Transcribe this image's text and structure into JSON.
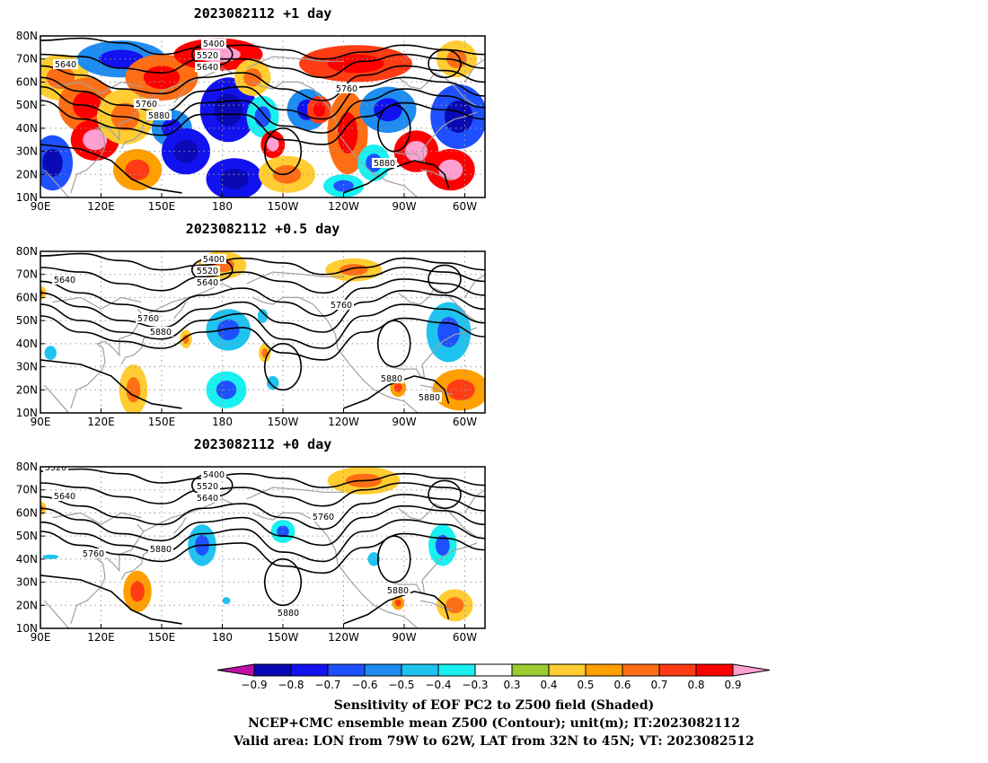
{
  "panels": [
    {
      "title": "2023082112  +1 day",
      "contour_labels": [
        "5400",
        "5520",
        "5640",
        "5640",
        "5760",
        "5760",
        "5880",
        "5880"
      ],
      "blobs": [
        {
          "lon": 100,
          "lat": 62,
          "rx": 14,
          "ry": 10,
          "v": 0.4
        },
        {
          "lon": 113,
          "lat": 50,
          "rx": 14,
          "ry": 12,
          "v": 0.6
        },
        {
          "lon": 117,
          "lat": 35,
          "rx": 12,
          "ry": 9,
          "v": 0.8
        },
        {
          "lon": 96,
          "lat": 25,
          "rx": 10,
          "ry": 12,
          "v": -0.7
        },
        {
          "lon": 130,
          "lat": 70,
          "rx": 22,
          "ry": 8,
          "v": -0.6
        },
        {
          "lon": 132,
          "lat": 45,
          "rx": 14,
          "ry": 12,
          "v": 0.4
        },
        {
          "lon": 138,
          "lat": 22,
          "rx": 12,
          "ry": 9,
          "v": 0.5
        },
        {
          "lon": 150,
          "lat": 62,
          "rx": 18,
          "ry": 10,
          "v": 0.6
        },
        {
          "lon": 155,
          "lat": 40,
          "rx": 10,
          "ry": 8,
          "v": -0.6
        },
        {
          "lon": 162,
          "lat": 30,
          "rx": 12,
          "ry": 10,
          "v": -0.8
        },
        {
          "lon": 178,
          "lat": 72,
          "rx": 22,
          "ry": 7,
          "v": 0.8
        },
        {
          "lon": 183,
          "lat": 48,
          "rx": 14,
          "ry": 14,
          "v": -0.8
        },
        {
          "lon": 195,
          "lat": 62,
          "rx": 9,
          "ry": 8,
          "v": 0.4
        },
        {
          "lon": 186,
          "lat": 18,
          "rx": 14,
          "ry": 9,
          "v": -0.8
        },
        {
          "lon": 200,
          "lat": 45,
          "rx": 8,
          "ry": 9,
          "v": -0.4
        },
        {
          "lon": 205,
          "lat": 33,
          "rx": 6,
          "ry": 6,
          "v": 0.8
        },
        {
          "lon": 212,
          "lat": 20,
          "rx": 14,
          "ry": 8,
          "v": 0.4
        },
        {
          "lon": 222,
          "lat": 48,
          "rx": 10,
          "ry": 9,
          "v": -0.6
        },
        {
          "lon": 228,
          "lat": 48,
          "rx": 6,
          "ry": 6,
          "v": 0.7
        },
        {
          "lon": 246,
          "lat": 68,
          "rx": 28,
          "ry": 8,
          "v": 0.7
        },
        {
          "lon": 242,
          "lat": 38,
          "rx": 10,
          "ry": 18,
          "v": 0.6
        },
        {
          "lon": 262,
          "lat": 48,
          "rx": 14,
          "ry": 10,
          "v": -0.6
        },
        {
          "lon": 276,
          "lat": 30,
          "rx": 11,
          "ry": 9,
          "v": 0.8
        },
        {
          "lon": 296,
          "lat": 70,
          "rx": 10,
          "ry": 8,
          "v": 0.4
        },
        {
          "lon": 297,
          "lat": 45,
          "rx": 14,
          "ry": 14,
          "v": -0.7
        },
        {
          "lon": 293,
          "lat": 22,
          "rx": 12,
          "ry": 9,
          "v": 0.8
        },
        {
          "lon": 240,
          "lat": 15,
          "rx": 10,
          "ry": 5,
          "v": -0.4
        },
        {
          "lon": 255,
          "lat": 25,
          "rx": 8,
          "ry": 8,
          "v": -0.4
        }
      ]
    },
    {
      "title": "2023082112  +0.5 day",
      "contour_labels": [
        "5400",
        "5520",
        "5640",
        "5640",
        "5760",
        "5760",
        "5880",
        "5880",
        "5880"
      ],
      "blobs": [
        {
          "lon": 180,
          "lat": 74,
          "rx": 12,
          "ry": 6,
          "v": 0.4
        },
        {
          "lon": 245,
          "lat": 72,
          "rx": 14,
          "ry": 5,
          "v": 0.4
        },
        {
          "lon": 183,
          "lat": 46,
          "rx": 11,
          "ry": 9,
          "v": -0.5
        },
        {
          "lon": 200,
          "lat": 52,
          "rx": 5,
          "ry": 6,
          "v": -0.3
        },
        {
          "lon": 201,
          "lat": 36,
          "rx": 3,
          "ry": 4,
          "v": 0.4
        },
        {
          "lon": 205,
          "lat": 23,
          "rx": 6,
          "ry": 6,
          "v": -0.3
        },
        {
          "lon": 182,
          "lat": 20,
          "rx": 10,
          "ry": 8,
          "v": -0.4
        },
        {
          "lon": 162,
          "lat": 42,
          "rx": 3,
          "ry": 4,
          "v": 0.4
        },
        {
          "lon": 136,
          "lat": 20,
          "rx": 7,
          "ry": 11,
          "v": 0.4
        },
        {
          "lon": 95,
          "lat": 36,
          "rx": 6,
          "ry": 6,
          "v": -0.3
        },
        {
          "lon": 292,
          "lat": 45,
          "rx": 11,
          "ry": 13,
          "v": -0.5
        },
        {
          "lon": 298,
          "lat": 20,
          "rx": 14,
          "ry": 9,
          "v": 0.5
        },
        {
          "lon": 267,
          "lat": 21,
          "rx": 4,
          "ry": 4,
          "v": 0.5
        },
        {
          "lon": 90,
          "lat": 62,
          "rx": 3,
          "ry": 3,
          "v": 0.4
        }
      ]
    },
    {
      "title": "2023082112  +0 day",
      "contour_labels": [
        "5400",
        "5520",
        "5520",
        "5640",
        "5640",
        "5760",
        "5760",
        "5880",
        "5880",
        "5880"
      ],
      "blobs": [
        {
          "lon": 250,
          "lat": 74,
          "rx": 18,
          "ry": 6,
          "v": 0.4
        },
        {
          "lon": 170,
          "lat": 46,
          "rx": 7,
          "ry": 9,
          "v": -0.5
        },
        {
          "lon": 210,
          "lat": 52,
          "rx": 6,
          "ry": 5,
          "v": -0.4
        },
        {
          "lon": 255,
          "lat": 40,
          "rx": 6,
          "ry": 6,
          "v": -0.3
        },
        {
          "lon": 138,
          "lat": 26,
          "rx": 7,
          "ry": 9,
          "v": 0.5
        },
        {
          "lon": 95,
          "lat": 41,
          "rx": 8,
          "ry": 2,
          "v": -0.3
        },
        {
          "lon": 289,
          "lat": 46,
          "rx": 7,
          "ry": 9,
          "v": -0.4
        },
        {
          "lon": 295,
          "lat": 20,
          "rx": 9,
          "ry": 7,
          "v": 0.4
        },
        {
          "lon": 267,
          "lat": 21,
          "rx": 3,
          "ry": 3,
          "v": 0.5
        },
        {
          "lon": 182,
          "lat": 22,
          "rx": 4,
          "ry": 3,
          "v": -0.3
        },
        {
          "lon": 90,
          "lat": 62,
          "rx": 3,
          "ry": 3,
          "v": 0.4
        }
      ]
    }
  ],
  "axes": {
    "lat_labels": [
      "80N",
      "70N",
      "60N",
      "50N",
      "40N",
      "30N",
      "20N",
      "10N"
    ],
    "lon_labels": [
      "90E",
      "120E",
      "150E",
      "180",
      "150W",
      "120W",
      "90W",
      "60W"
    ]
  },
  "colorbar": {
    "levels": [
      -0.9,
      -0.8,
      -0.7,
      -0.6,
      -0.5,
      -0.4,
      -0.3,
      0.3,
      0.4,
      0.5,
      0.6,
      0.7,
      0.8,
      0.9
    ],
    "tick_labels": [
      "−0.9",
      "−0.8",
      "−0.7",
      "−0.6",
      "−0.5",
      "−0.4",
      "−0.3",
      "0.3",
      "0.4",
      "0.5",
      "0.6",
      "0.7",
      "0.8",
      "0.9"
    ],
    "colors": [
      "#bf0fa8",
      "#0a0ab4",
      "#1212f0",
      "#1e50ff",
      "#1e8cf0",
      "#1ec3f0",
      "#19f0f0",
      "#ffffff",
      "#9bcd32",
      "#ffcd32",
      "#ffa000",
      "#ff6e14",
      "#ff3c14",
      "#ff0000",
      "#ffa0d2"
    ]
  },
  "caption": {
    "line1": "Sensitivity of EOF PC2 to Z500 field (Shaded)",
    "line2": "NCEP+CMC ensemble mean Z500 (Contour); unit(m); IT:2023082112",
    "line3": "Valid area: LON from 79W to 62W, LAT from 32N to 45N; VT: 2023082512"
  }
}
